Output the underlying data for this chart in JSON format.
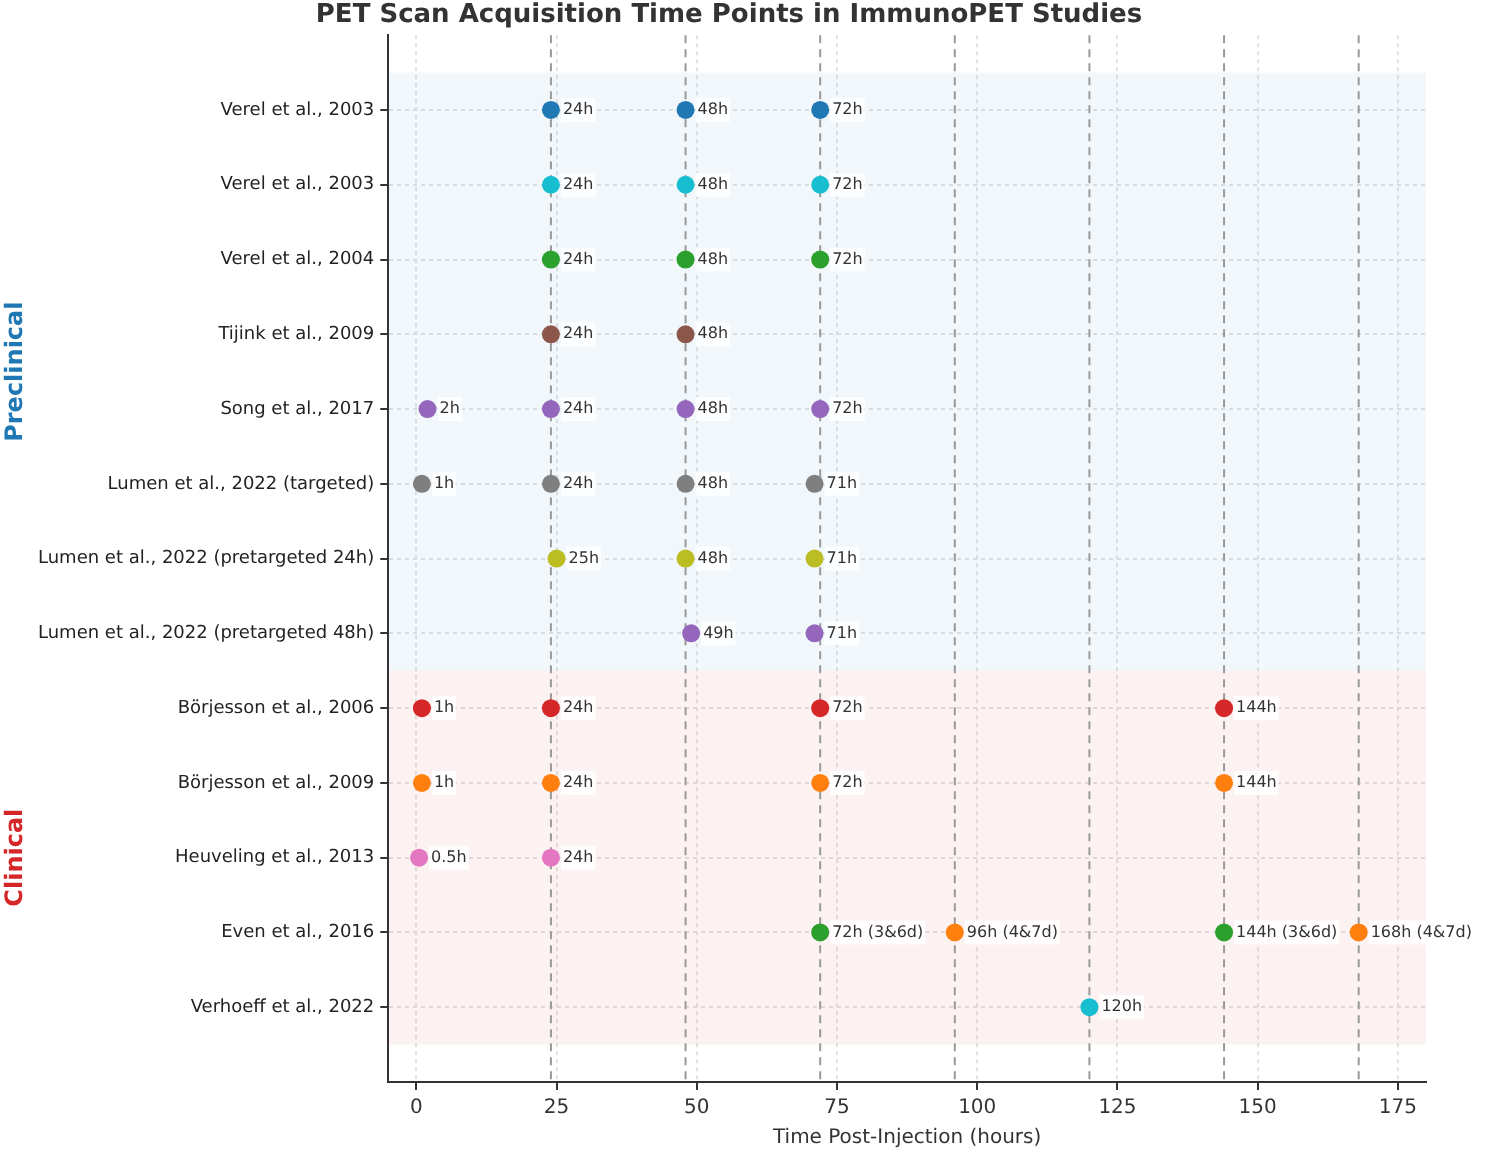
{
  "chart_data": {
    "type": "scatter",
    "orientation": "horizontal",
    "title": "PET Scan Acquisition Time Points in ImmunoPET Studies",
    "xlabel": "Time Post-Injection (hours)",
    "categories": [
      "Verel et al., 2003",
      "Verel et al., 2003",
      "Verel et al., 2004",
      "Tijink et al., 2009",
      "Song et al., 2017",
      "Lumen et al., 2022 (targeted)",
      "Lumen et al., 2022 (pretargeted 24h)",
      "Lumen et al., 2022 (pretargeted 48h)",
      "Börjesson et al., 2006",
      "Börjesson et al., 2009",
      "Heuveling et al., 2013",
      "Even et al., 2016",
      "Verhoeff et al., 2022"
    ],
    "series": [
      {
        "values": [
          24,
          24,
          24,
          24,
          2,
          1,
          25,
          49,
          1,
          1,
          0.5,
          72,
          120
        ],
        "value_labels": [
          "24h",
          "24h",
          "24h",
          "24h",
          "2h",
          "1h",
          "25h",
          "49h",
          "1h",
          "1h",
          "0.5h",
          "72h (3&6d)",
          "120h"
        ],
        "colors": [
          "#1f77b4",
          "#17becf",
          "#2ca02c",
          "#8c564b",
          "#9467bd",
          "#7f7f7f",
          "#bcbd22",
          "#9467bd",
          "#d62728",
          "#ff7f0e",
          "#e377c2",
          "#2ca02c",
          "#17becf"
        ]
      },
      {
        "values": [
          48,
          48,
          48,
          48,
          24,
          24,
          48,
          71,
          24,
          24,
          24,
          96,
          null
        ],
        "value_labels": [
          "48h",
          "48h",
          "48h",
          "48h",
          "24h",
          "24h",
          "48h",
          "71h",
          "24h",
          "24h",
          "24h",
          "96h (4&7d)",
          null
        ],
        "colors": [
          "#1f77b4",
          "#17becf",
          "#2ca02c",
          "#8c564b",
          "#9467bd",
          "#7f7f7f",
          "#bcbd22",
          "#9467bd",
          "#d62728",
          "#ff7f0e",
          "#e377c2",
          "#ff7f0e",
          "#17becf"
        ]
      },
      {
        "values": [
          72,
          72,
          72,
          null,
          48,
          48,
          71,
          null,
          72,
          72,
          null,
          144,
          null
        ],
        "value_labels": [
          "72h",
          "72h",
          "72h",
          null,
          "48h",
          "48h",
          "71h",
          null,
          "72h",
          "72h",
          null,
          "144h (3&6d)",
          null
        ],
        "colors": [
          "#1f77b4",
          "#17becf",
          "#2ca02c",
          "#8c564b",
          "#9467bd",
          "#7f7f7f",
          "#bcbd22",
          "#9467bd",
          "#d62728",
          "#ff7f0e",
          "#e377c2",
          "#2ca02c",
          "#17becf"
        ]
      },
      {
        "values": [
          null,
          null,
          null,
          null,
          72,
          71,
          null,
          null,
          144,
          144,
          null,
          168,
          null
        ],
        "value_labels": [
          null,
          null,
          null,
          null,
          "72h",
          "71h",
          null,
          null,
          "144h",
          "144h",
          null,
          "168h (4&7d)",
          null
        ],
        "colors": [
          "#1f77b4",
          "#17becf",
          "#2ca02c",
          "#8c564b",
          "#9467bd",
          "#7f7f7f",
          "#bcbd22",
          "#9467bd",
          "#d62728",
          "#ff7f0e",
          "#e377c2",
          "#ff7f0e",
          "#17becf"
        ]
      }
    ],
    "xlim": [
      -5,
      180
    ],
    "xticks": [
      0,
      25,
      50,
      75,
      100,
      125,
      150,
      175
    ],
    "grid": true,
    "marker": "circle",
    "ref_lines": [
      {
        "axis": "x",
        "value": 24,
        "line_style": "dashed",
        "color": "#999999"
      },
      {
        "axis": "x",
        "value": 48,
        "line_style": "dashed",
        "color": "#999999"
      },
      {
        "axis": "x",
        "value": 72,
        "line_style": "dashed",
        "color": "#999999"
      },
      {
        "axis": "x",
        "value": 96,
        "line_style": "dashed",
        "color": "#999999"
      },
      {
        "axis": "x",
        "value": 120,
        "line_style": "dashed",
        "color": "#999999"
      },
      {
        "axis": "x",
        "value": 144,
        "line_style": "dashed",
        "color": "#999999"
      },
      {
        "axis": "x",
        "value": 168,
        "line_style": "dashed",
        "color": "#999999"
      }
    ],
    "bands": [
      {
        "axis": "y",
        "from": "Verel et al., 2003",
        "to": "Lumen et al., 2022 (pretargeted 48h)",
        "label": "Preclinical",
        "color": "#1f77b4"
      },
      {
        "axis": "y",
        "from": "Börjesson et al., 2006",
        "to": "Verhoeff et al., 2022",
        "label": "Clinical",
        "color": "#d62728"
      }
    ]
  }
}
